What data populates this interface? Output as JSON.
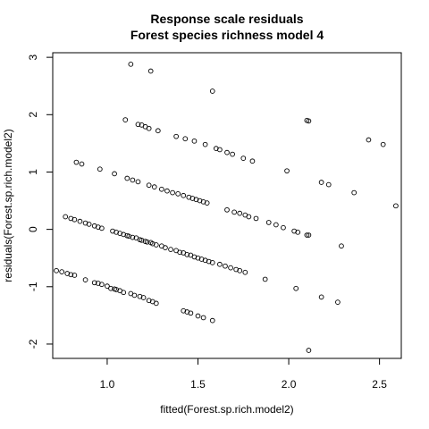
{
  "chart_data": {
    "type": "scatter",
    "title": "Response scale residuals",
    "subtitle": "Forest species richness model 4",
    "xlabel": "fitted(Forest.sp.rich.model2)",
    "ylabel": "residuals(Forest.sp.rich.model2)",
    "xlim": [
      0.7,
      2.62
    ],
    "ylim": [
      -2.25,
      3.08
    ],
    "xticks": [
      1.0,
      1.5,
      2.0,
      2.5
    ],
    "xtick_labels": [
      "1.0",
      "1.5",
      "2.0",
      "2.5"
    ],
    "yticks": [
      -2,
      -1,
      0,
      1,
      2,
      3
    ],
    "ytick_labels": [
      "-2",
      "-1",
      "0",
      "1",
      "2",
      "3"
    ],
    "grid": false,
    "marker": "open-circle",
    "color": "#000000",
    "points": [
      [
        0.72,
        -0.72
      ],
      [
        0.75,
        -0.74
      ],
      [
        0.78,
        -0.77
      ],
      [
        0.8,
        -0.79
      ],
      [
        0.82,
        -0.8
      ],
      [
        0.88,
        -0.88
      ],
      [
        0.93,
        -0.93
      ],
      [
        0.95,
        -0.94
      ],
      [
        0.97,
        -0.96
      ],
      [
        1.0,
        -0.99
      ],
      [
        1.02,
        -1.03
      ],
      [
        1.04,
        -1.04
      ],
      [
        1.05,
        -1.05
      ],
      [
        1.07,
        -1.07
      ],
      [
        1.09,
        -1.1
      ],
      [
        1.13,
        -1.12
      ],
      [
        1.15,
        -1.15
      ],
      [
        1.18,
        -1.17
      ],
      [
        1.2,
        -1.19
      ],
      [
        1.23,
        -1.24
      ],
      [
        1.25,
        -1.26
      ],
      [
        1.27,
        -1.29
      ],
      [
        1.42,
        -1.42
      ],
      [
        1.44,
        -1.44
      ],
      [
        1.46,
        -1.46
      ],
      [
        1.5,
        -1.51
      ],
      [
        1.53,
        -1.54
      ],
      [
        1.58,
        -1.59
      ],
      [
        0.77,
        0.22
      ],
      [
        0.8,
        0.19
      ],
      [
        0.82,
        0.17
      ],
      [
        0.85,
        0.14
      ],
      [
        0.88,
        0.11
      ],
      [
        0.9,
        0.09
      ],
      [
        0.93,
        0.06
      ],
      [
        0.95,
        0.04
      ],
      [
        0.97,
        0.02
      ],
      [
        1.03,
        -0.03
      ],
      [
        1.05,
        -0.05
      ],
      [
        1.07,
        -0.07
      ],
      [
        1.09,
        -0.09
      ],
      [
        1.11,
        -0.11
      ],
      [
        1.12,
        -0.12
      ],
      [
        1.14,
        -0.14
      ],
      [
        1.16,
        -0.15
      ],
      [
        1.18,
        -0.18
      ],
      [
        1.19,
        -0.19
      ],
      [
        1.21,
        -0.21
      ],
      [
        1.22,
        -0.22
      ],
      [
        1.24,
        -0.23
      ],
      [
        1.25,
        -0.25
      ],
      [
        1.27,
        -0.27
      ],
      [
        1.3,
        -0.29
      ],
      [
        1.32,
        -0.32
      ],
      [
        1.35,
        -0.35
      ],
      [
        1.38,
        -0.37
      ],
      [
        1.4,
        -0.4
      ],
      [
        1.42,
        -0.41
      ],
      [
        1.44,
        -0.44
      ],
      [
        1.46,
        -0.45
      ],
      [
        1.48,
        -0.48
      ],
      [
        1.5,
        -0.5
      ],
      [
        1.52,
        -0.52
      ],
      [
        1.54,
        -0.54
      ],
      [
        1.56,
        -0.56
      ],
      [
        1.58,
        -0.58
      ],
      [
        1.62,
        -0.61
      ],
      [
        1.65,
        -0.64
      ],
      [
        1.68,
        -0.67
      ],
      [
        1.71,
        -0.7
      ],
      [
        1.73,
        -0.72
      ],
      [
        1.76,
        -0.75
      ],
      [
        1.87,
        -0.87
      ],
      [
        1.11,
        0.89
      ],
      [
        1.14,
        0.86
      ],
      [
        1.17,
        0.83
      ],
      [
        1.23,
        0.77
      ],
      [
        1.26,
        0.74
      ],
      [
        1.3,
        0.7
      ],
      [
        1.33,
        0.67
      ],
      [
        1.36,
        0.64
      ],
      [
        1.39,
        0.62
      ],
      [
        1.42,
        0.59
      ],
      [
        1.45,
        0.56
      ],
      [
        1.47,
        0.54
      ],
      [
        1.49,
        0.52
      ],
      [
        1.51,
        0.5
      ],
      [
        1.53,
        0.48
      ],
      [
        1.55,
        0.46
      ],
      [
        1.66,
        0.34
      ],
      [
        1.7,
        0.3
      ],
      [
        1.73,
        0.28
      ],
      [
        1.76,
        0.25
      ],
      [
        1.78,
        0.22
      ],
      [
        1.82,
        0.19
      ],
      [
        1.89,
        0.12
      ],
      [
        1.93,
        0.08
      ],
      [
        1.97,
        0.03
      ],
      [
        2.03,
        -0.03
      ],
      [
        2.05,
        -0.05
      ],
      [
        2.1,
        -0.1
      ],
      [
        2.11,
        -0.1
      ],
      [
        0.83,
        1.17
      ],
      [
        0.86,
        1.14
      ],
      [
        0.96,
        1.05
      ],
      [
        1.04,
        0.97
      ],
      [
        1.1,
        1.91
      ],
      [
        1.17,
        1.83
      ],
      [
        1.19,
        1.82
      ],
      [
        1.21,
        1.79
      ],
      [
        1.23,
        1.76
      ],
      [
        1.28,
        1.72
      ],
      [
        1.38,
        1.62
      ],
      [
        1.43,
        1.58
      ],
      [
        1.48,
        1.54
      ],
      [
        1.54,
        1.48
      ],
      [
        1.6,
        1.41
      ],
      [
        1.62,
        1.39
      ],
      [
        1.66,
        1.34
      ],
      [
        1.69,
        1.31
      ],
      [
        1.75,
        1.24
      ],
      [
        1.8,
        1.19
      ],
      [
        1.99,
        1.02
      ],
      [
        1.13,
        2.88
      ],
      [
        1.24,
        2.76
      ],
      [
        1.58,
        2.41
      ],
      [
        2.1,
        1.9
      ],
      [
        2.11,
        1.89
      ],
      [
        2.04,
        -1.03
      ],
      [
        2.18,
        -1.18
      ],
      [
        2.27,
        -1.27
      ],
      [
        2.11,
        -2.11
      ],
      [
        2.18,
        0.82
      ],
      [
        2.22,
        0.78
      ],
      [
        2.29,
        -0.29
      ],
      [
        2.36,
        0.64
      ],
      [
        2.44,
        1.56
      ],
      [
        2.52,
        1.48
      ],
      [
        2.59,
        0.41
      ]
    ]
  }
}
